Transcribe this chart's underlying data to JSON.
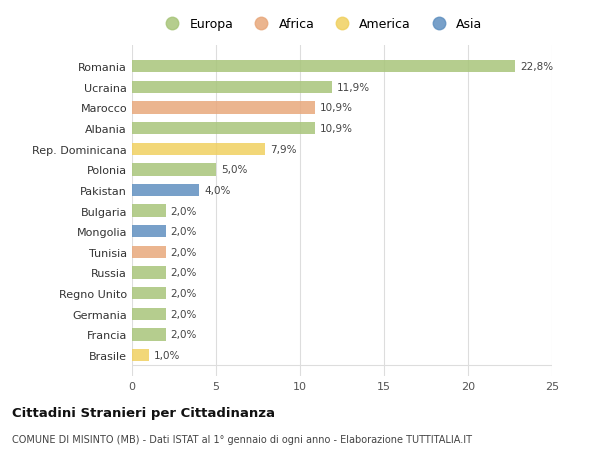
{
  "countries": [
    "Romania",
    "Ucraina",
    "Marocco",
    "Albania",
    "Rep. Dominicana",
    "Polonia",
    "Pakistan",
    "Bulgaria",
    "Mongolia",
    "Tunisia",
    "Russia",
    "Regno Unito",
    "Germania",
    "Francia",
    "Brasile"
  ],
  "values": [
    22.8,
    11.9,
    10.9,
    10.9,
    7.9,
    5.0,
    4.0,
    2.0,
    2.0,
    2.0,
    2.0,
    2.0,
    2.0,
    2.0,
    1.0
  ],
  "labels": [
    "22,8%",
    "11,9%",
    "10,9%",
    "10,9%",
    "7,9%",
    "5,0%",
    "4,0%",
    "2,0%",
    "2,0%",
    "2,0%",
    "2,0%",
    "2,0%",
    "2,0%",
    "2,0%",
    "1,0%"
  ],
  "continents": [
    "Europa",
    "Europa",
    "Africa",
    "Europa",
    "America",
    "Europa",
    "Asia",
    "Europa",
    "Asia",
    "Africa",
    "Europa",
    "Europa",
    "Europa",
    "Europa",
    "America"
  ],
  "colors": {
    "Europa": "#a8c57a",
    "Africa": "#e8a87c",
    "America": "#f0d060",
    "Asia": "#6090c0"
  },
  "legend_order": [
    "Europa",
    "Africa",
    "America",
    "Asia"
  ],
  "title": "Cittadini Stranieri per Cittadinanza",
  "subtitle": "COMUNE DI MISINTO (MB) - Dati ISTAT al 1° gennaio di ogni anno - Elaborazione TUTTITALIA.IT",
  "xlim": [
    0,
    25
  ],
  "xticks": [
    0,
    5,
    10,
    15,
    20,
    25
  ],
  "bg_color": "#ffffff",
  "grid_color": "#dddddd",
  "bar_height": 0.6
}
